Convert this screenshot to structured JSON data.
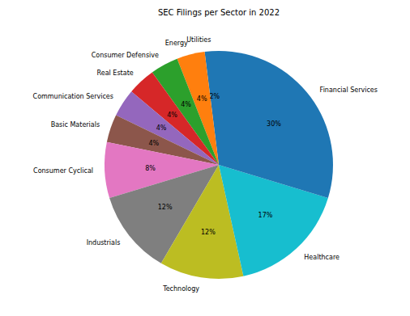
{
  "chart_data": {
    "type": "pie",
    "title": "SEC Filings per Sector in 2022",
    "categories": [
      "Utilities",
      "Energy",
      "Consumer Defensive",
      "Real Estate",
      "Communication Services",
      "Basic Materials",
      "Consumer Cyclical",
      "Industrials",
      "Technology",
      "Healthcare",
      "Financial Services"
    ],
    "values": [
      2,
      4,
      4,
      4,
      4,
      4,
      8,
      12,
      12,
      17,
      30
    ],
    "value_labels": [
      "2%",
      "4%",
      "4%",
      "4%",
      "4%",
      "4%",
      "8%",
      "12%",
      "12%",
      "17%",
      "30%"
    ],
    "colors": [
      "#1f77b4",
      "#ff7f0e",
      "#2ca02c",
      "#d62728",
      "#9467bd",
      "#8c564b",
      "#e377c2",
      "#7f7f7f",
      "#bcbd22",
      "#17becf",
      "#1f77b4"
    ],
    "data_labels": true
  }
}
